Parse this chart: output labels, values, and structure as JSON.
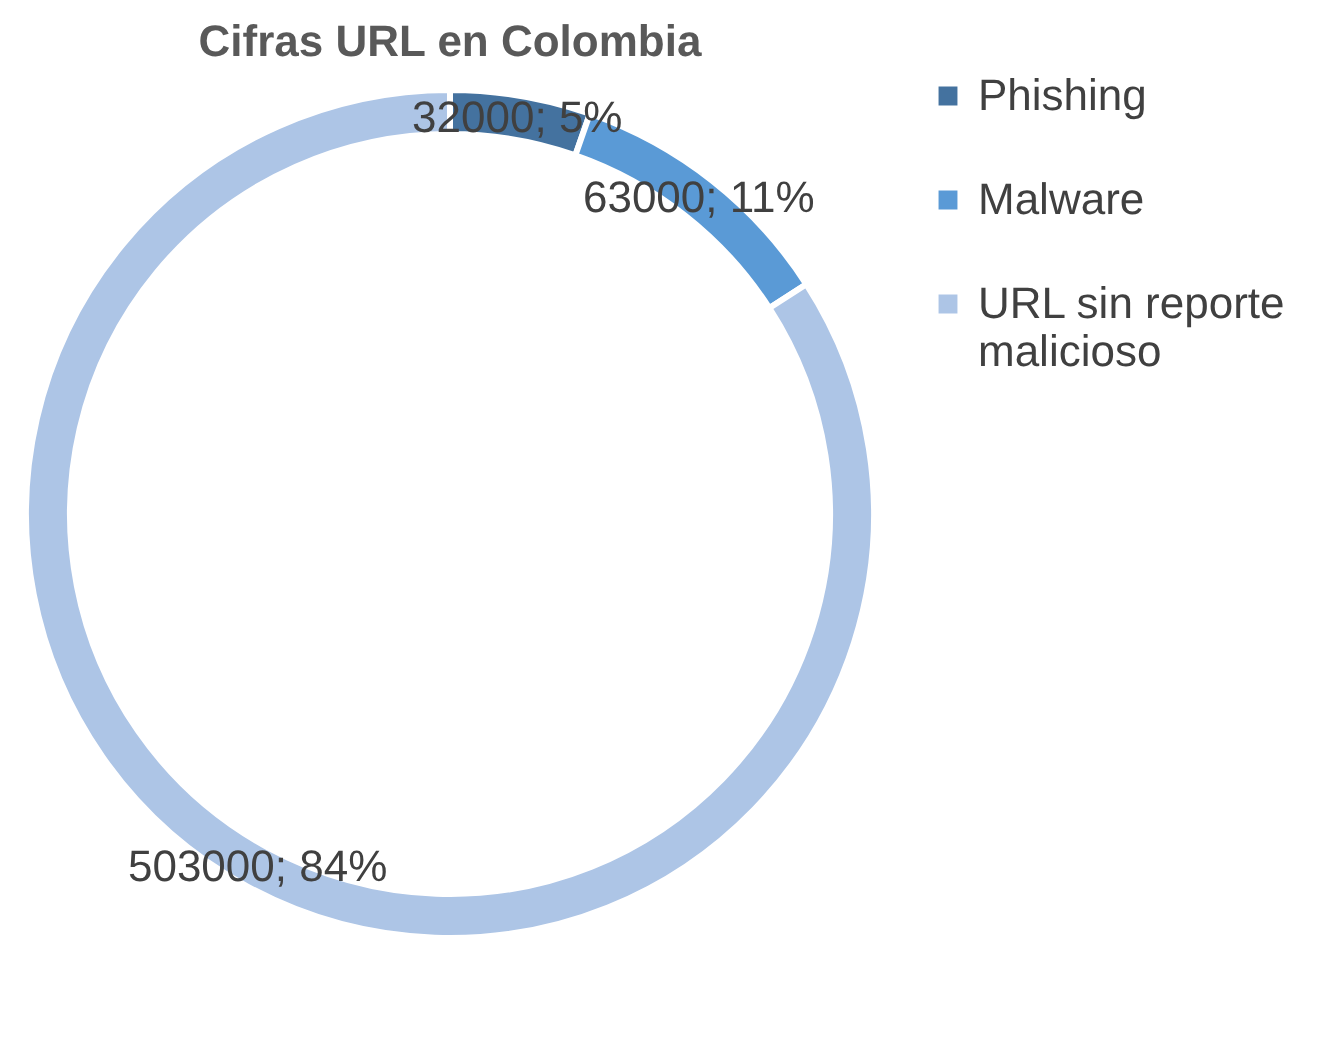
{
  "chart_data": {
    "type": "donut",
    "title": "Cifras URL en Colombia",
    "categories": [
      "Phishing",
      "Malware",
      "URL sin reporte malicioso"
    ],
    "values": [
      32000,
      63000,
      503000
    ],
    "colors": [
      "#44729f",
      "#5a9ad6",
      "#adc5e6"
    ],
    "value_labels": [
      "32000; 5%",
      "63000; 11%",
      "503000; 84%"
    ],
    "legend": "right"
  }
}
